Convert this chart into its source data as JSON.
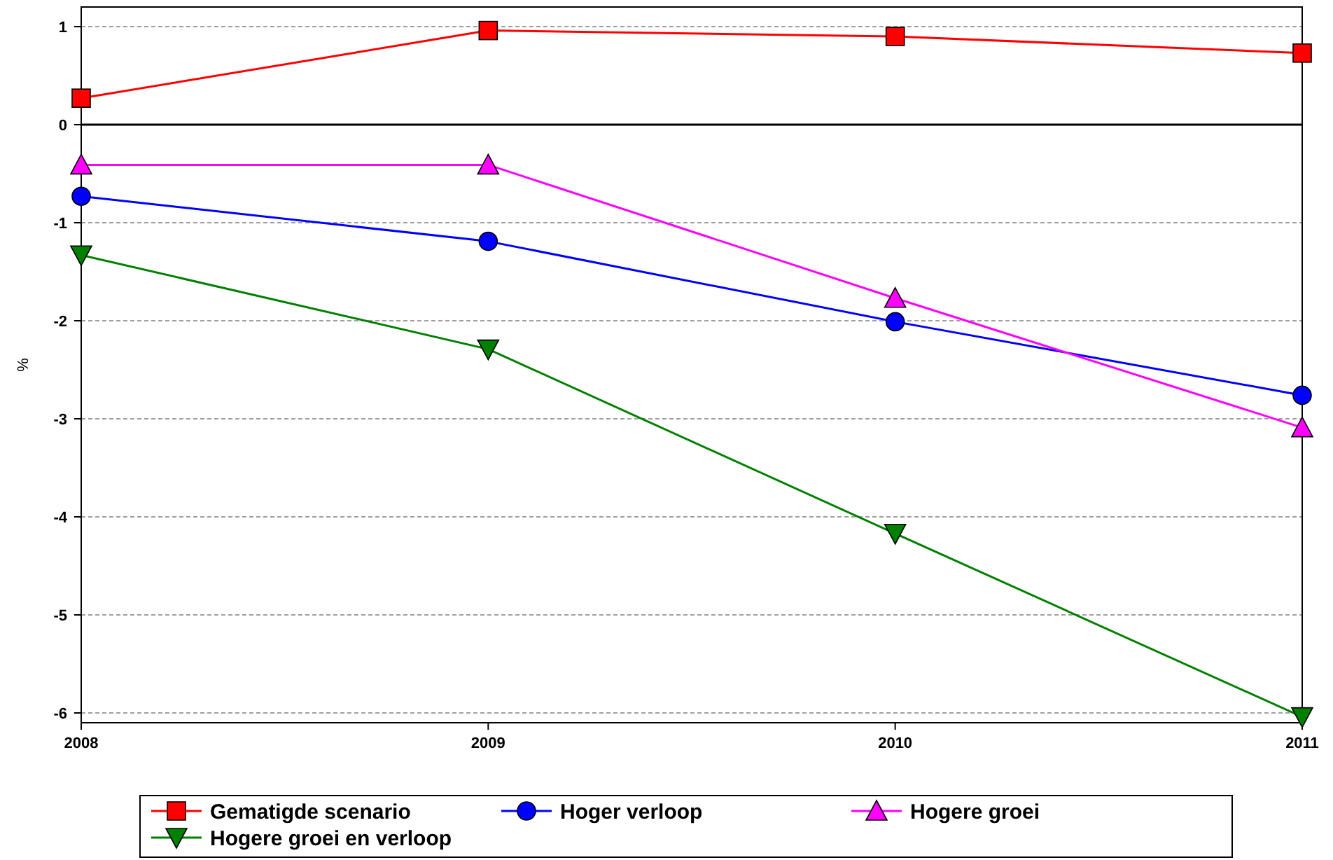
{
  "chart_data": {
    "type": "line",
    "ylabel": "%",
    "x": [
      2008,
      2009,
      2010,
      2011
    ],
    "xlim": [
      2008,
      2011
    ],
    "xticks": [
      2008,
      2009,
      2010,
      2011
    ],
    "ylim": [
      -6.1,
      1.2
    ],
    "yticks": [
      -6,
      -5,
      -4,
      -3,
      -2,
      -1,
      0,
      1
    ],
    "grid": "y",
    "legend": "bottom",
    "ref_lines": [
      {
        "axis": "y",
        "value": 0,
        "color": "#000000",
        "line_style": "solid"
      }
    ],
    "series": [
      {
        "name": "Gematigde scenario",
        "color": "#ff0000",
        "marker": "square",
        "values": [
          0.27,
          0.96,
          0.9,
          0.73
        ]
      },
      {
        "name": "Hoger verloop",
        "color": "#0000ff",
        "marker": "circle",
        "values": [
          -0.73,
          -1.19,
          -2.01,
          -2.76
        ]
      },
      {
        "name": "Hogere groei",
        "color": "#ff00ff",
        "marker": "triangle",
        "values": [
          -0.41,
          -0.41,
          -1.77,
          -3.09
        ]
      },
      {
        "name": "Hogere groei en verloop",
        "color": "#008000",
        "marker": "triangle-down",
        "values": [
          -1.33,
          -2.29,
          -4.17,
          -6.04
        ]
      }
    ]
  }
}
